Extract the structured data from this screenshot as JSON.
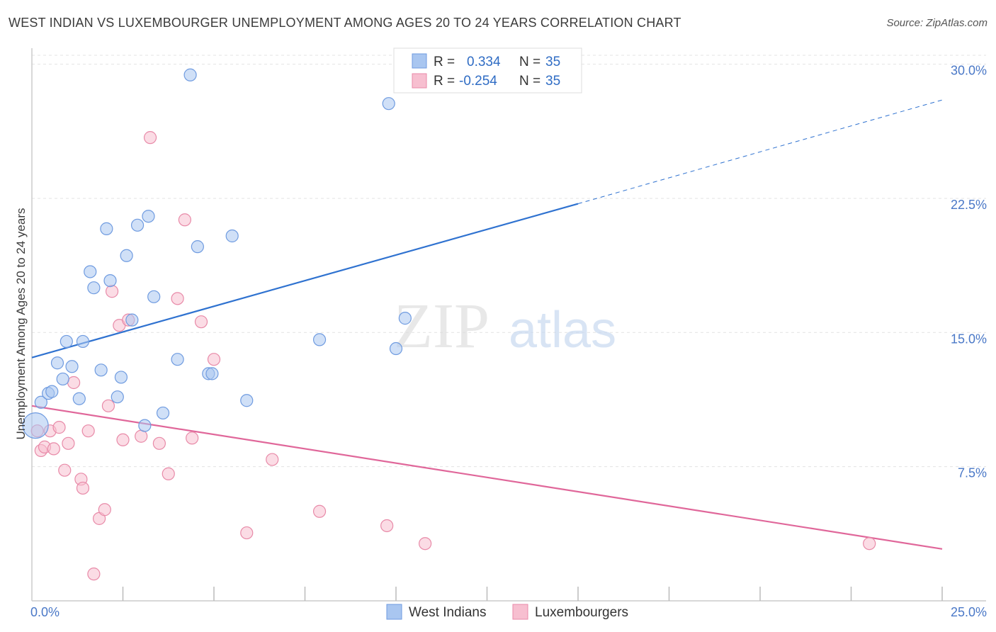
{
  "title": "WEST INDIAN VS LUXEMBOURGER UNEMPLOYMENT AMONG AGES 20 TO 24 YEARS CORRELATION CHART",
  "source": "Source: ZipAtlas.com",
  "watermark": {
    "zip": "ZIP",
    "atlas": "atlas"
  },
  "legend": {
    "rows": [
      {
        "r_label": "R =",
        "r_value": "0.334",
        "n_label": "N =",
        "n_value": "35",
        "color": "#a9c6f0",
        "stroke": "#6f9be0"
      },
      {
        "r_label": "R =",
        "r_value": "-0.254",
        "n_label": "N =",
        "n_value": "35",
        "color": "#f7bfd0",
        "stroke": "#e88aa8"
      }
    ]
  },
  "bottom_legend": [
    {
      "label": "West Indians",
      "color": "#a9c6f0",
      "stroke": "#6f9be0"
    },
    {
      "label": "Luxembourgers",
      "color": "#f7bfd0",
      "stroke": "#e88aa8"
    }
  ],
  "chart_data": {
    "type": "scatter",
    "title": "WEST INDIAN VS LUXEMBOURGER UNEMPLOYMENT AMONG AGES 20 TO 24 YEARS CORRELATION CHART",
    "xlabel": "",
    "ylabel": "Unemployment Among Ages 20 to 24 years",
    "xlim": [
      0,
      25
    ],
    "ylim": [
      0,
      30.5
    ],
    "x_tick_labels": [
      {
        "value": 0,
        "label": "0.0%"
      },
      {
        "value": 25,
        "label": "25.0%"
      }
    ],
    "y_tick_labels": [
      {
        "value": 7.5,
        "label": "7.5%"
      },
      {
        "value": 15,
        "label": "15.0%"
      },
      {
        "value": 22.5,
        "label": "22.5%"
      },
      {
        "value": 30,
        "label": "30.0%"
      }
    ],
    "x_minor_ticks": [
      2.5,
      5,
      7.5,
      10,
      12.5,
      15,
      17.5,
      20,
      22.5,
      25
    ],
    "grid": true,
    "legend_position": "top-center",
    "series": [
      {
        "name": "West Indians",
        "color": "#6f9be0",
        "fill": "#a9c6f0",
        "points": [
          {
            "x": 0.25,
            "y": 11.1
          },
          {
            "x": 0.45,
            "y": 11.6
          },
          {
            "x": 0.55,
            "y": 11.7
          },
          {
            "x": 0.7,
            "y": 13.3
          },
          {
            "x": 0.85,
            "y": 12.4
          },
          {
            "x": 0.95,
            "y": 14.5
          },
          {
            "x": 1.1,
            "y": 13.1
          },
          {
            "x": 1.3,
            "y": 11.3
          },
          {
            "x": 1.4,
            "y": 14.5
          },
          {
            "x": 1.6,
            "y": 18.4
          },
          {
            "x": 1.7,
            "y": 17.5
          },
          {
            "x": 1.9,
            "y": 12.9
          },
          {
            "x": 2.05,
            "y": 20.8
          },
          {
            "x": 2.15,
            "y": 17.9
          },
          {
            "x": 2.35,
            "y": 11.4
          },
          {
            "x": 2.45,
            "y": 12.5
          },
          {
            "x": 2.6,
            "y": 19.3
          },
          {
            "x": 2.75,
            "y": 15.7
          },
          {
            "x": 2.9,
            "y": 21.0
          },
          {
            "x": 3.1,
            "y": 9.8
          },
          {
            "x": 3.2,
            "y": 21.5
          },
          {
            "x": 3.35,
            "y": 17.0
          },
          {
            "x": 3.6,
            "y": 10.5
          },
          {
            "x": 4.0,
            "y": 13.5
          },
          {
            "x": 4.35,
            "y": 29.4
          },
          {
            "x": 4.55,
            "y": 19.8
          },
          {
            "x": 4.85,
            "y": 12.7
          },
          {
            "x": 4.95,
            "y": 12.7
          },
          {
            "x": 5.5,
            "y": 20.4
          },
          {
            "x": 5.9,
            "y": 11.2
          },
          {
            "x": 7.9,
            "y": 14.6
          },
          {
            "x": 9.8,
            "y": 27.8
          },
          {
            "x": 10.0,
            "y": 14.1
          },
          {
            "x": 10.25,
            "y": 15.8
          },
          {
            "x": 0.1,
            "y": 9.8,
            "big": true
          }
        ],
        "trend": {
          "x0": 0,
          "y0": 13.6,
          "x1": 15.0,
          "y1": 22.2,
          "x_dash_end": 25,
          "y_dash_end": 28.0
        }
      },
      {
        "name": "Luxembourgers",
        "color": "#e88aa8",
        "fill": "#f7bfd0",
        "points": [
          {
            "x": 0.15,
            "y": 9.5
          },
          {
            "x": 0.25,
            "y": 8.4
          },
          {
            "x": 0.35,
            "y": 8.6
          },
          {
            "x": 0.5,
            "y": 9.5
          },
          {
            "x": 0.6,
            "y": 8.5
          },
          {
            "x": 0.75,
            "y": 9.7
          },
          {
            "x": 0.9,
            "y": 7.3
          },
          {
            "x": 1.0,
            "y": 8.8
          },
          {
            "x": 1.15,
            "y": 12.2
          },
          {
            "x": 1.35,
            "y": 6.8
          },
          {
            "x": 1.4,
            "y": 6.3
          },
          {
            "x": 1.55,
            "y": 9.5
          },
          {
            "x": 1.7,
            "y": 1.5
          },
          {
            "x": 1.85,
            "y": 4.6
          },
          {
            "x": 2.0,
            "y": 5.1
          },
          {
            "x": 2.1,
            "y": 10.9
          },
          {
            "x": 2.2,
            "y": 17.3
          },
          {
            "x": 2.4,
            "y": 15.4
          },
          {
            "x": 2.5,
            "y": 9.0
          },
          {
            "x": 2.65,
            "y": 15.7
          },
          {
            "x": 3.0,
            "y": 9.2
          },
          {
            "x": 3.25,
            "y": 25.9
          },
          {
            "x": 3.5,
            "y": 8.8
          },
          {
            "x": 3.75,
            "y": 7.1
          },
          {
            "x": 4.0,
            "y": 16.9
          },
          {
            "x": 4.2,
            "y": 21.3
          },
          {
            "x": 4.4,
            "y": 9.1
          },
          {
            "x": 4.65,
            "y": 15.6
          },
          {
            "x": 5.0,
            "y": 13.5
          },
          {
            "x": 5.9,
            "y": 3.8
          },
          {
            "x": 6.6,
            "y": 7.9
          },
          {
            "x": 7.9,
            "y": 5.0
          },
          {
            "x": 9.75,
            "y": 4.2
          },
          {
            "x": 10.8,
            "y": 3.2
          },
          {
            "x": 23.0,
            "y": 3.2
          }
        ],
        "trend": {
          "x0": 0,
          "y0": 10.9,
          "x1": 25,
          "y1": 2.9
        }
      }
    ]
  }
}
